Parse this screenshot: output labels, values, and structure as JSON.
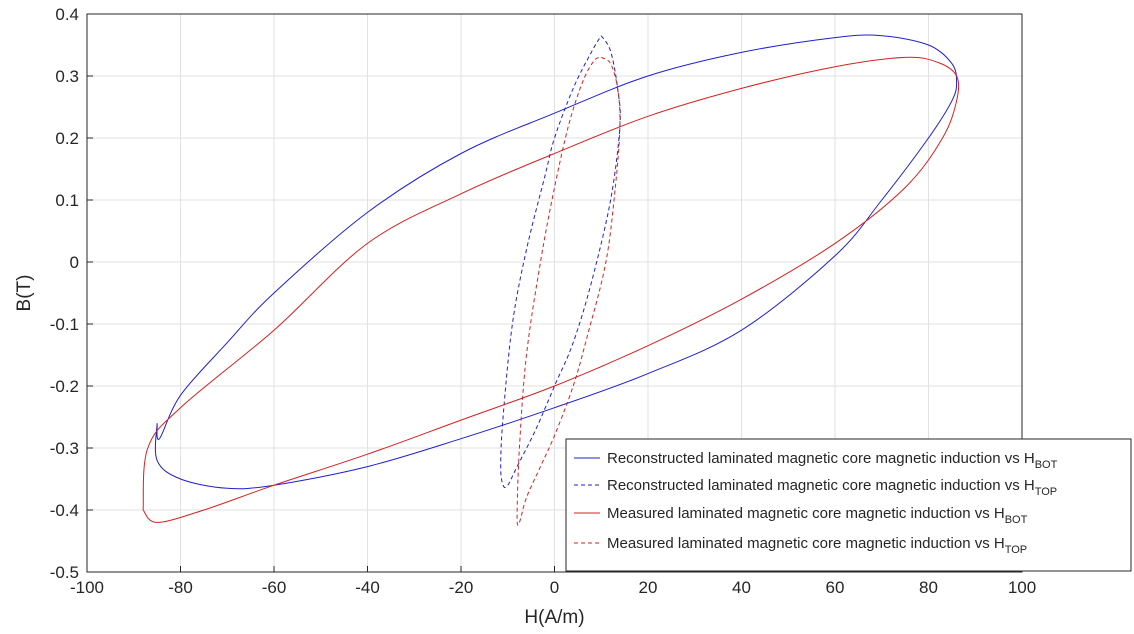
{
  "chart_data": {
    "type": "line",
    "xlabel": "H(A/m)",
    "ylabel": "B(T)",
    "xlim": [
      -100,
      100
    ],
    "ylim": [
      -0.5,
      0.4
    ],
    "xticks": [
      -100,
      -80,
      -60,
      -40,
      -20,
      0,
      20,
      40,
      60,
      80,
      100
    ],
    "yticks": [
      -0.5,
      -0.4,
      -0.3,
      -0.2,
      -0.1,
      0,
      0.1,
      0.2,
      0.3,
      0.4
    ],
    "xtick_labels": [
      "-100",
      "-80",
      "-60",
      "-40",
      "-20",
      "0",
      "20",
      "40",
      "60",
      "80",
      "100"
    ],
    "ytick_labels": [
      "-0.5",
      "-0.4",
      "-0.3",
      "-0.2",
      "-0.1",
      "0",
      "0.1",
      "0.2",
      "0.3",
      "0.4"
    ],
    "grid": true,
    "legend_position": "bottom-right",
    "series": [
      {
        "name": "Reconstructed laminated magnetic core magnetic induction vs H",
        "subscript": "BOT",
        "color": "#1f1fd0",
        "style": "solid",
        "x": [
          -85,
          -84.5,
          -80,
          -70,
          -60,
          -40,
          -20,
          0,
          20,
          40,
          60,
          70,
          80,
          85,
          86,
          85,
          80,
          70,
          60,
          40,
          20,
          0,
          -20,
          -40,
          -60,
          -70,
          -80,
          -85,
          -85
        ],
        "y": [
          -0.26,
          -0.285,
          -0.215,
          -0.13,
          -0.05,
          0.08,
          0.175,
          0.24,
          0.3,
          0.338,
          0.362,
          0.365,
          0.35,
          0.32,
          0.29,
          0.26,
          0.2,
          0.1,
          0.01,
          -0.11,
          -0.18,
          -0.235,
          -0.285,
          -0.33,
          -0.36,
          -0.365,
          -0.35,
          -0.32,
          -0.26
        ]
      },
      {
        "name": "Reconstructed laminated magnetic core magnetic induction vs H",
        "subscript": "TOP",
        "color": "#1f1fd0",
        "style": "dashed",
        "x": [
          10,
          12,
          13.5,
          14,
          12,
          8,
          4,
          0,
          -4,
          -8,
          -10,
          -11,
          -11.5,
          -11,
          -9,
          -6,
          -2,
          0,
          4,
          8,
          10
        ],
        "y": [
          0.365,
          0.34,
          0.28,
          0.22,
          0.1,
          -0.03,
          -0.13,
          -0.2,
          -0.27,
          -0.33,
          -0.36,
          -0.36,
          -0.33,
          -0.25,
          -0.1,
          0.02,
          0.14,
          0.2,
          0.28,
          0.34,
          0.365
        ]
      },
      {
        "name": "Measured laminated magnetic core magnetic induction vs H",
        "subscript": "BOT",
        "color": "#d62020",
        "style": "solid",
        "x": [
          -88,
          -87,
          -80,
          -60,
          -40,
          -20,
          0,
          20,
          40,
          60,
          75,
          82,
          86,
          86,
          83,
          75,
          60,
          40,
          20,
          0,
          -20,
          -40,
          -60,
          -75,
          -85,
          -88
        ],
        "y": [
          -0.4,
          -0.3,
          -0.235,
          -0.11,
          0.03,
          0.11,
          0.175,
          0.235,
          0.28,
          0.315,
          0.33,
          0.322,
          0.3,
          0.26,
          0.2,
          0.12,
          0.03,
          -0.06,
          -0.135,
          -0.2,
          -0.255,
          -0.31,
          -0.36,
          -0.4,
          -0.42,
          -0.4
        ]
      },
      {
        "name": "Measured laminated magnetic core magnetic induction vs H",
        "subscript": "TOP",
        "color": "#d62020",
        "style": "dashed",
        "x": [
          10,
          12,
          13.5,
          14,
          13,
          11,
          7,
          4,
          0,
          -3,
          -6,
          -7.5,
          -8,
          -7.5,
          -6,
          -3,
          0,
          3,
          6,
          8.5,
          10
        ],
        "y": [
          0.33,
          0.32,
          0.28,
          0.22,
          0.12,
          0.0,
          -0.12,
          -0.2,
          -0.28,
          -0.33,
          -0.38,
          -0.42,
          -0.41,
          -0.3,
          -0.15,
          0.0,
          0.12,
          0.22,
          0.29,
          0.325,
          0.33
        ]
      }
    ]
  }
}
